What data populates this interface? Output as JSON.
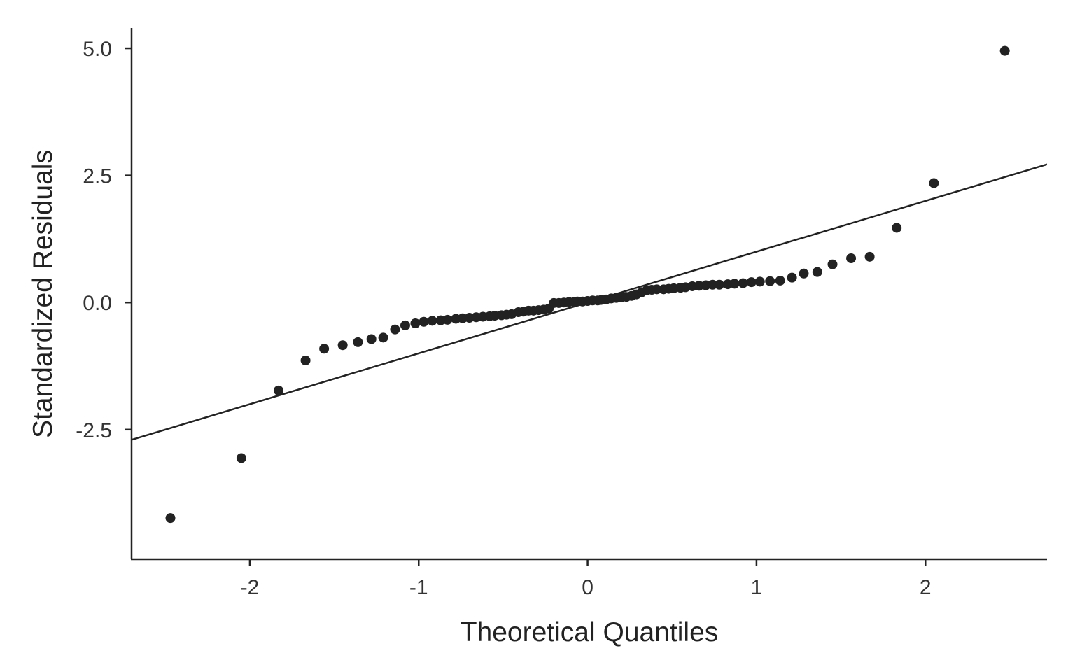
{
  "chart_data": {
    "type": "scatter",
    "xlabel": "Theoretical Quantiles",
    "ylabel": "Standardized Residuals",
    "xlim": [
      -2.7,
      2.72
    ],
    "ylim": [
      -5.05,
      5.4
    ],
    "x_ticks": [
      -2,
      -1,
      0,
      1,
      2
    ],
    "x_tick_labels": [
      "-2",
      "-1",
      "0",
      "1",
      "2"
    ],
    "y_ticks": [
      5.0,
      2.5,
      0.0,
      -2.5
    ],
    "y_tick_labels": [
      "5.0",
      "2.5",
      "0.0",
      "-2.5"
    ],
    "grid": false,
    "colors": {
      "points": "#222222",
      "line": "#222222",
      "axes": "#222222"
    },
    "reference_line": {
      "intercept": 0.0,
      "slope": 1.0
    },
    "points": [
      {
        "x": -2.47,
        "y": -4.24
      },
      {
        "x": -2.05,
        "y": -3.06
      },
      {
        "x": -1.83,
        "y": -1.73
      },
      {
        "x": -1.67,
        "y": -1.14
      },
      {
        "x": -1.56,
        "y": -0.91
      },
      {
        "x": -1.45,
        "y": -0.84
      },
      {
        "x": -1.36,
        "y": -0.78
      },
      {
        "x": -1.28,
        "y": -0.72
      },
      {
        "x": -1.21,
        "y": -0.69
      },
      {
        "x": -1.14,
        "y": -0.53
      },
      {
        "x": -1.08,
        "y": -0.45
      },
      {
        "x": -1.02,
        "y": -0.41
      },
      {
        "x": -0.97,
        "y": -0.38
      },
      {
        "x": -0.92,
        "y": -0.36
      },
      {
        "x": -0.87,
        "y": -0.35
      },
      {
        "x": -0.83,
        "y": -0.34
      },
      {
        "x": -0.78,
        "y": -0.32
      },
      {
        "x": -0.74,
        "y": -0.31
      },
      {
        "x": -0.7,
        "y": -0.3
      },
      {
        "x": -0.66,
        "y": -0.29
      },
      {
        "x": -0.62,
        "y": -0.28
      },
      {
        "x": -0.58,
        "y": -0.27
      },
      {
        "x": -0.55,
        "y": -0.26
      },
      {
        "x": -0.51,
        "y": -0.25
      },
      {
        "x": -0.48,
        "y": -0.24
      },
      {
        "x": -0.45,
        "y": -0.23
      },
      {
        "x": -0.41,
        "y": -0.19
      },
      {
        "x": -0.38,
        "y": -0.18
      },
      {
        "x": -0.35,
        "y": -0.16
      },
      {
        "x": -0.32,
        "y": -0.16
      },
      {
        "x": -0.29,
        "y": -0.15
      },
      {
        "x": -0.26,
        "y": -0.14
      },
      {
        "x": -0.23,
        "y": -0.12
      },
      {
        "x": -0.2,
        "y": -0.01
      },
      {
        "x": -0.17,
        "y": -0.01
      },
      {
        "x": -0.14,
        "y": 0.0
      },
      {
        "x": -0.11,
        "y": 0.01
      },
      {
        "x": -0.08,
        "y": 0.01
      },
      {
        "x": -0.06,
        "y": 0.02
      },
      {
        "x": -0.03,
        "y": 0.02
      },
      {
        "x": 0.0,
        "y": 0.03
      },
      {
        "x": 0.03,
        "y": 0.04
      },
      {
        "x": 0.06,
        "y": 0.04
      },
      {
        "x": 0.08,
        "y": 0.05
      },
      {
        "x": 0.11,
        "y": 0.06
      },
      {
        "x": 0.14,
        "y": 0.08
      },
      {
        "x": 0.17,
        "y": 0.09
      },
      {
        "x": 0.2,
        "y": 0.1
      },
      {
        "x": 0.23,
        "y": 0.11
      },
      {
        "x": 0.26,
        "y": 0.13
      },
      {
        "x": 0.29,
        "y": 0.16
      },
      {
        "x": 0.32,
        "y": 0.2
      },
      {
        "x": 0.35,
        "y": 0.24
      },
      {
        "x": 0.38,
        "y": 0.25
      },
      {
        "x": 0.41,
        "y": 0.26
      },
      {
        "x": 0.45,
        "y": 0.26
      },
      {
        "x": 0.48,
        "y": 0.27
      },
      {
        "x": 0.51,
        "y": 0.28
      },
      {
        "x": 0.55,
        "y": 0.29
      },
      {
        "x": 0.58,
        "y": 0.3
      },
      {
        "x": 0.62,
        "y": 0.32
      },
      {
        "x": 0.66,
        "y": 0.33
      },
      {
        "x": 0.7,
        "y": 0.34
      },
      {
        "x": 0.74,
        "y": 0.35
      },
      {
        "x": 0.78,
        "y": 0.35
      },
      {
        "x": 0.83,
        "y": 0.36
      },
      {
        "x": 0.87,
        "y": 0.37
      },
      {
        "x": 0.92,
        "y": 0.38
      },
      {
        "x": 0.97,
        "y": 0.4
      },
      {
        "x": 1.02,
        "y": 0.41
      },
      {
        "x": 1.08,
        "y": 0.42
      },
      {
        "x": 1.14,
        "y": 0.43
      },
      {
        "x": 1.21,
        "y": 0.49
      },
      {
        "x": 1.28,
        "y": 0.57
      },
      {
        "x": 1.36,
        "y": 0.6
      },
      {
        "x": 1.45,
        "y": 0.75
      },
      {
        "x": 1.56,
        "y": 0.87
      },
      {
        "x": 1.67,
        "y": 0.9
      },
      {
        "x": 1.83,
        "y": 1.47
      },
      {
        "x": 2.05,
        "y": 2.35
      },
      {
        "x": 2.47,
        "y": 4.95
      }
    ]
  }
}
